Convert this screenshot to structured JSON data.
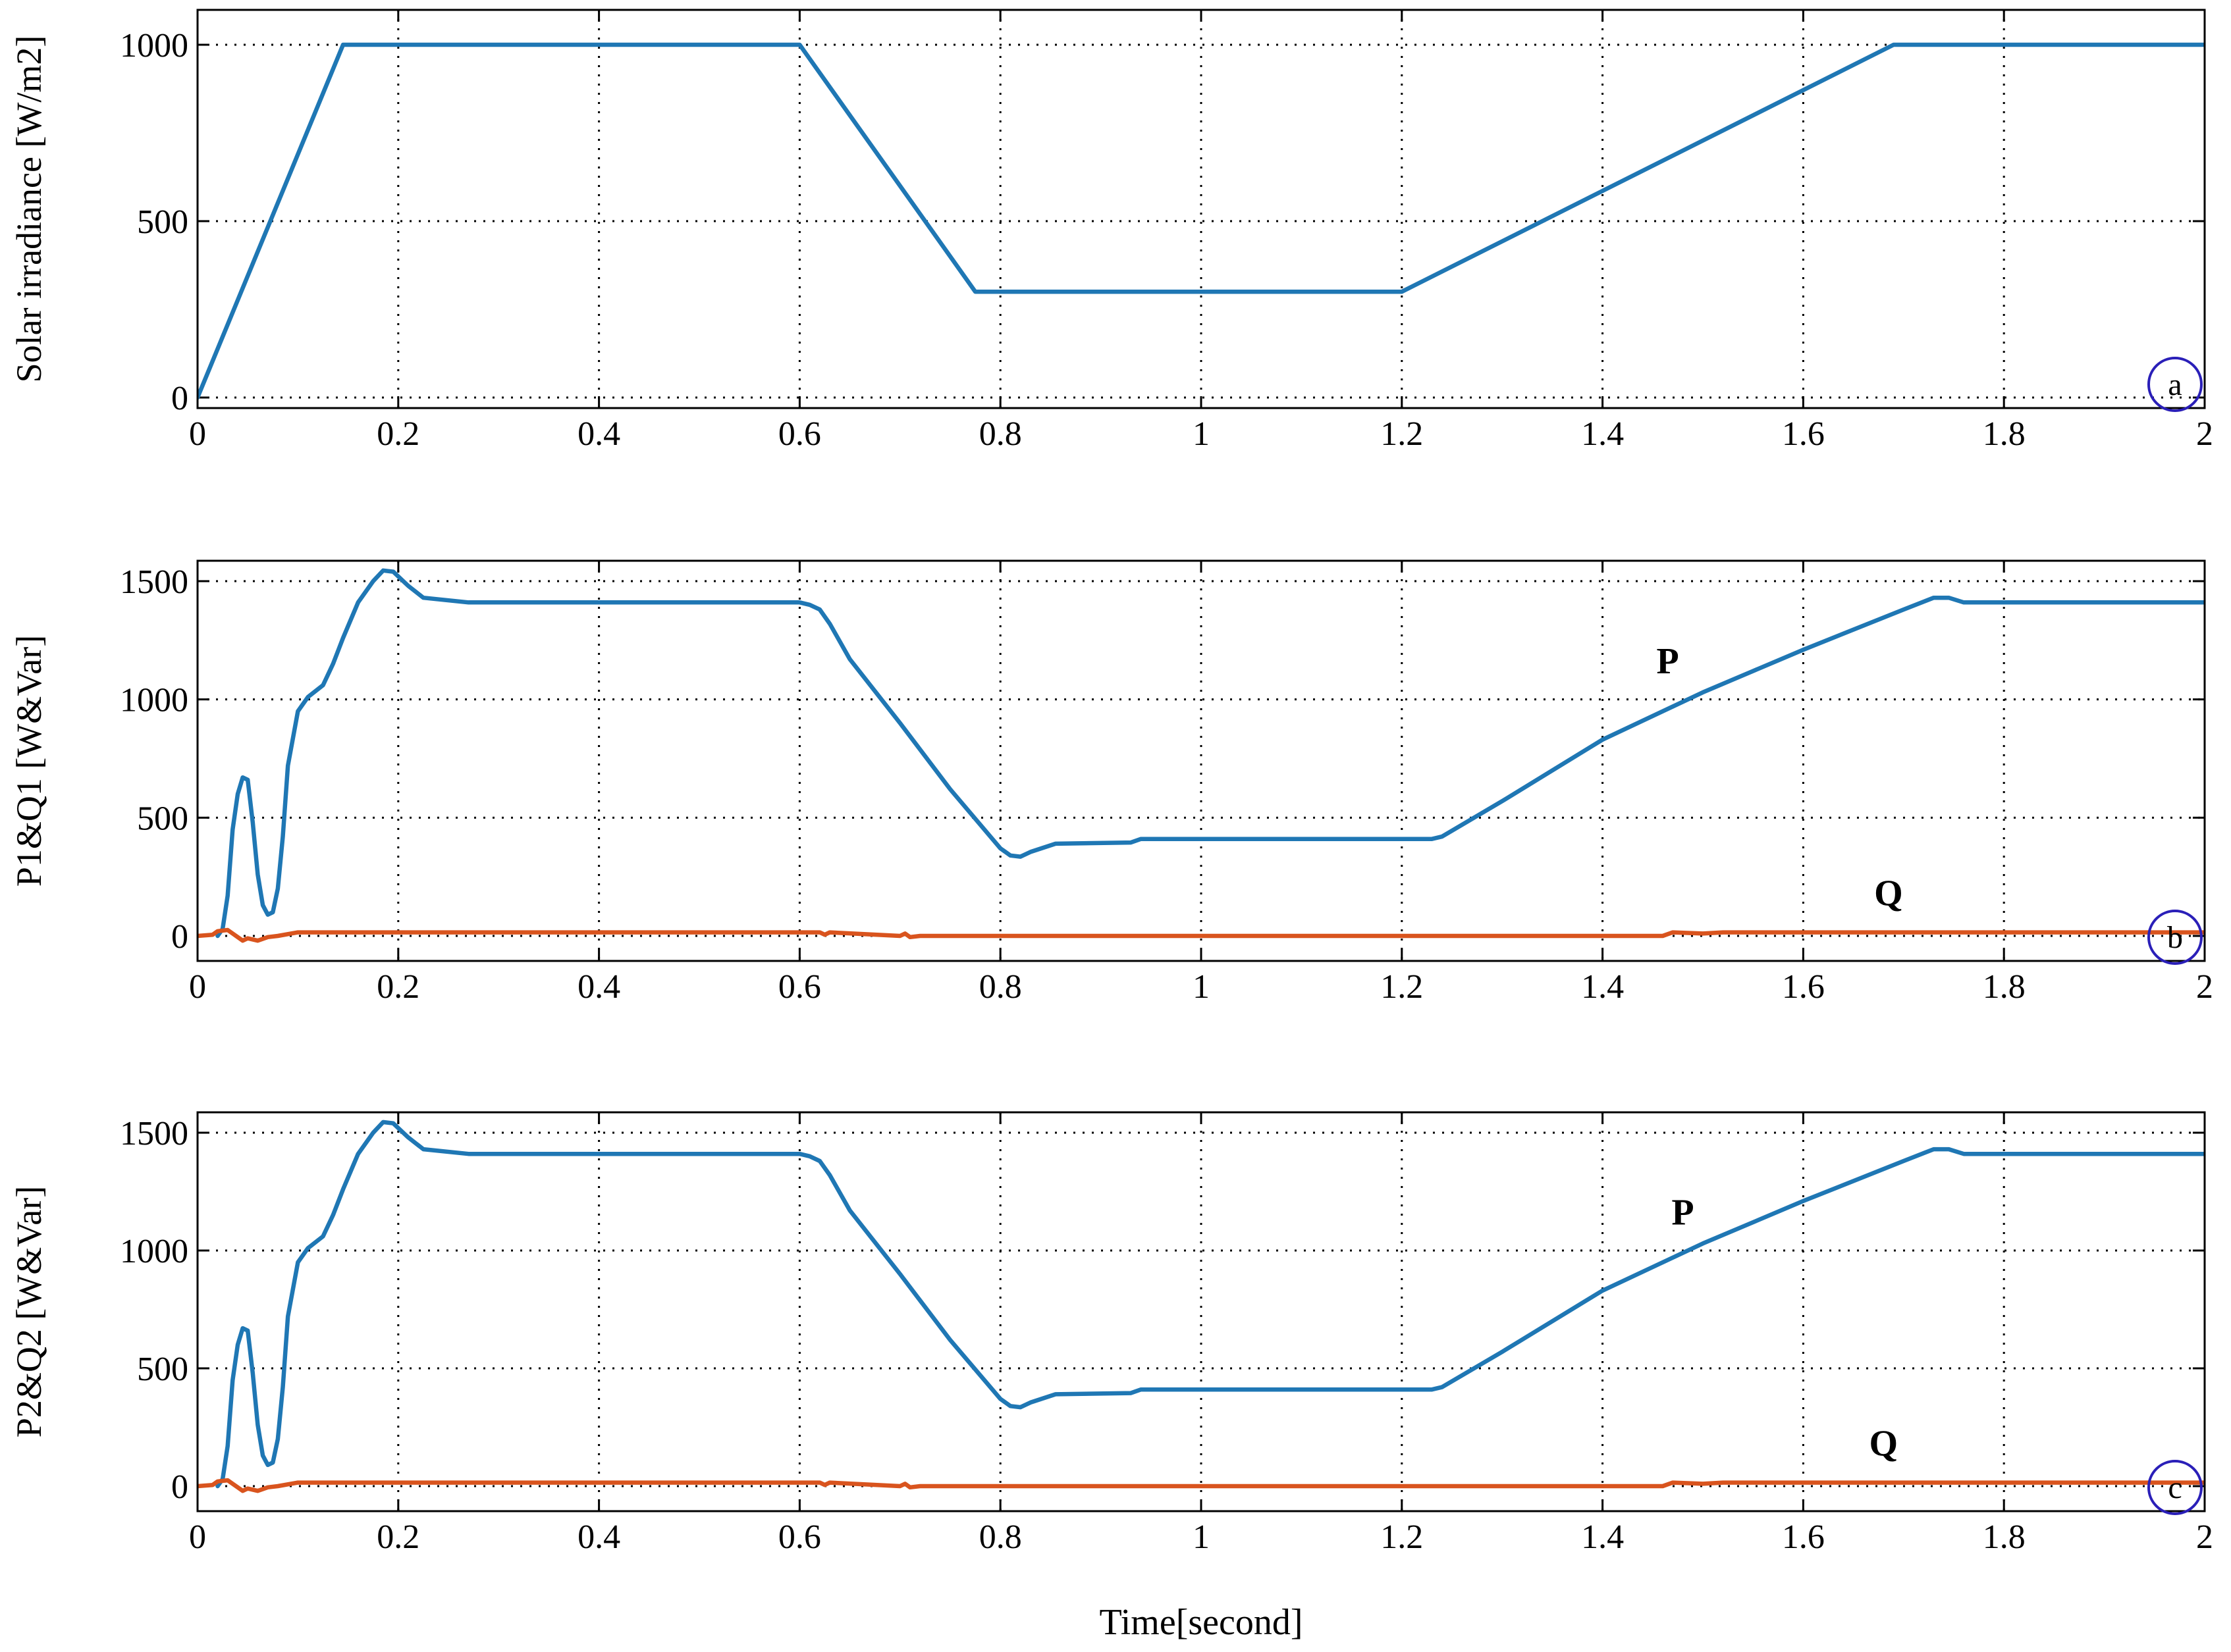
{
  "chart_data": [
    {
      "type": "line",
      "panel_marker": "a",
      "ylabel": "Solar irradiance [W/m2]",
      "xlabel": "",
      "xlim": [
        0,
        2
      ],
      "ylim": [
        0,
        1000
      ],
      "xticks": [
        0,
        0.2,
        0.4,
        0.6,
        0.8,
        1,
        1.2,
        1.4,
        1.6,
        1.8,
        2
      ],
      "xtick_labels": [
        "0",
        "0.2",
        "0.4",
        "0.6",
        "0.8",
        "1",
        "1.2",
        "1.4",
        "1.6",
        "1.8",
        "2"
      ],
      "yticks": [
        0,
        500,
        1000
      ],
      "ytick_labels": [
        "0",
        "500",
        "1000"
      ],
      "grid": true,
      "series": [
        {
          "color": "#1f77b4",
          "x": [
            0,
            0.145,
            0.6,
            0.775,
            1.2,
            1.69,
            2
          ],
          "y": [
            0,
            1000,
            1000,
            300,
            300,
            1000,
            1000
          ]
        }
      ],
      "annotations": []
    },
    {
      "type": "line",
      "panel_marker": "b",
      "ylabel": "P1&Q1 [W&Var]",
      "xlabel": "",
      "xlim": [
        0,
        2
      ],
      "ylim": [
        -100,
        1600
      ],
      "xticks": [
        0,
        0.2,
        0.4,
        0.6,
        0.8,
        1,
        1.2,
        1.4,
        1.6,
        1.8,
        2
      ],
      "xtick_labels": [
        "0",
        "0.2",
        "0.4",
        "0.6",
        "0.8",
        "1",
        "1.2",
        "1.4",
        "1.6",
        "1.8",
        "2"
      ],
      "yticks": [
        0,
        500,
        1000,
        1500
      ],
      "ytick_labels": [
        "0",
        "500",
        "1000",
        "1500"
      ],
      "grid": true,
      "series": [
        {
          "color": "#1f77b4",
          "x": [
            0.02,
            0.025,
            0.03,
            0.035,
            0.04,
            0.045,
            0.05,
            0.055,
            0.06,
            0.065,
            0.07,
            0.075,
            0.08,
            0.085,
            0.09,
            0.1,
            0.11,
            0.125,
            0.135,
            0.145,
            0.16,
            0.175,
            0.185,
            0.195,
            0.21,
            0.225,
            0.27,
            0.6,
            0.61,
            0.62,
            0.63,
            0.65,
            0.7,
            0.75,
            0.8,
            0.81,
            0.82,
            0.83,
            0.855,
            0.93,
            0.94,
            1.0,
            1.23,
            1.24,
            1.3,
            1.4,
            1.5,
            1.6,
            1.7,
            1.73,
            1.745,
            1.76,
            1.8,
            2
          ],
          "y": [
            0,
            30,
            170,
            450,
            600,
            670,
            660,
            480,
            260,
            130,
            90,
            100,
            200,
            420,
            720,
            950,
            1010,
            1060,
            1150,
            1260,
            1410,
            1500,
            1545,
            1540,
            1480,
            1430,
            1410,
            1410,
            1400,
            1380,
            1320,
            1170,
            900,
            620,
            370,
            340,
            335,
            355,
            390,
            395,
            410,
            410,
            410,
            420,
            570,
            830,
            1030,
            1210,
            1380,
            1430,
            1430,
            1410,
            1410,
            1410
          ]
        },
        {
          "color": "#d9541e",
          "x": [
            0,
            0.015,
            0.02,
            0.03,
            0.035,
            0.04,
            0.045,
            0.05,
            0.06,
            0.07,
            0.08,
            0.1,
            0.6,
            0.62,
            0.625,
            0.63,
            0.7,
            0.705,
            0.71,
            0.72,
            1.46,
            1.47,
            1.5,
            1.52,
            2
          ],
          "y": [
            0,
            5,
            20,
            25,
            10,
            -5,
            -20,
            -10,
            -20,
            -5,
            0,
            15,
            15,
            15,
            5,
            15,
            0,
            10,
            -5,
            0,
            0,
            15,
            10,
            15,
            15
          ]
        }
      ],
      "annotations": [
        {
          "text": "P",
          "x": 1.465,
          "y": 1110
        },
        {
          "text": "Q",
          "x": 1.685,
          "y": 130
        }
      ]
    },
    {
      "type": "line",
      "panel_marker": "c",
      "ylabel": "P2&Q2 [W&Var]",
      "xlabel": "Time[second]",
      "xlim": [
        0,
        2
      ],
      "ylim": [
        -100,
        1600
      ],
      "xticks": [
        0,
        0.2,
        0.4,
        0.6,
        0.8,
        1,
        1.2,
        1.4,
        1.6,
        1.8,
        2
      ],
      "xtick_labels": [
        "0",
        "0.2",
        "0.4",
        "0.6",
        "0.8",
        "1",
        "1.2",
        "1.4",
        "1.6",
        "1.8",
        "2"
      ],
      "yticks": [
        0,
        500,
        1000,
        1500
      ],
      "ytick_labels": [
        "0",
        "500",
        "1000",
        "1500"
      ],
      "grid": true,
      "series": [
        {
          "color": "#1f77b4",
          "x": [
            0.02,
            0.025,
            0.03,
            0.035,
            0.04,
            0.045,
            0.05,
            0.055,
            0.06,
            0.065,
            0.07,
            0.075,
            0.08,
            0.085,
            0.09,
            0.1,
            0.11,
            0.125,
            0.135,
            0.145,
            0.16,
            0.175,
            0.185,
            0.195,
            0.21,
            0.225,
            0.27,
            0.6,
            0.61,
            0.62,
            0.63,
            0.65,
            0.7,
            0.75,
            0.8,
            0.81,
            0.82,
            0.83,
            0.855,
            0.93,
            0.94,
            1.0,
            1.23,
            1.24,
            1.3,
            1.4,
            1.5,
            1.6,
            1.7,
            1.73,
            1.745,
            1.76,
            1.8,
            2
          ],
          "y": [
            0,
            30,
            170,
            450,
            600,
            670,
            660,
            480,
            260,
            130,
            90,
            100,
            200,
            420,
            720,
            950,
            1010,
            1060,
            1150,
            1260,
            1410,
            1500,
            1545,
            1540,
            1480,
            1430,
            1410,
            1410,
            1400,
            1380,
            1320,
            1170,
            900,
            620,
            370,
            340,
            335,
            355,
            390,
            395,
            410,
            410,
            410,
            420,
            570,
            830,
            1030,
            1210,
            1380,
            1430,
            1430,
            1410,
            1410,
            1410
          ]
        },
        {
          "color": "#d9541e",
          "x": [
            0,
            0.015,
            0.02,
            0.03,
            0.035,
            0.04,
            0.045,
            0.05,
            0.06,
            0.07,
            0.08,
            0.1,
            0.6,
            0.62,
            0.625,
            0.63,
            0.7,
            0.705,
            0.71,
            0.72,
            1.46,
            1.47,
            1.5,
            1.52,
            2
          ],
          "y": [
            0,
            5,
            20,
            25,
            10,
            -5,
            -20,
            -10,
            -20,
            -5,
            0,
            15,
            15,
            15,
            5,
            15,
            0,
            10,
            -5,
            0,
            0,
            15,
            10,
            15,
            15
          ]
        }
      ],
      "annotations": [
        {
          "text": "P",
          "x": 1.48,
          "y": 1110
        },
        {
          "text": "Q",
          "x": 1.68,
          "y": 130
        }
      ]
    }
  ],
  "colors": {
    "p_series": "#1f77b4",
    "q_series": "#d9541e",
    "panel_marker_circle": "#2a1fb8"
  }
}
